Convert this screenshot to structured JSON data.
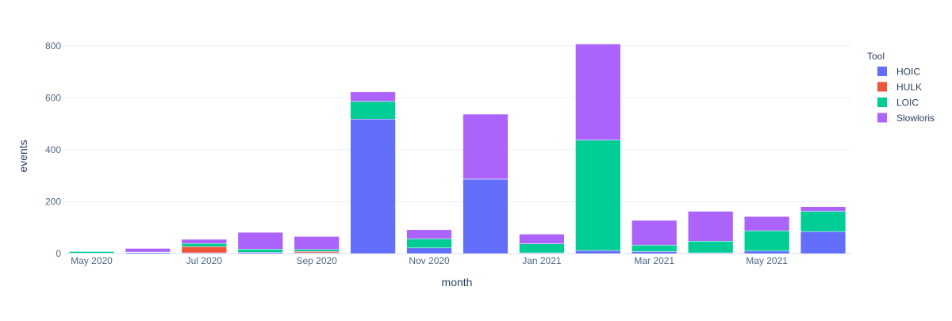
{
  "chart_data": {
    "type": "bar",
    "barmode": "stack",
    "xlabel": "month",
    "ylabel": "events",
    "ylim": [
      0,
      830
    ],
    "yticks": [
      0,
      200,
      400,
      600,
      800
    ],
    "x_tick_labels": [
      "May 2020",
      "Jul 2020",
      "Sep 2020",
      "Nov 2020",
      "Jan 2021",
      "Mar 2021",
      "May 2021"
    ],
    "grid": true,
    "legend_title": "Tool",
    "legend_position": "top-right",
    "categories": [
      "2020-05",
      "2020-06",
      "2020-07",
      "2020-08",
      "2020-09",
      "2020-10",
      "2020-11",
      "2020-12",
      "2021-01",
      "2021-02",
      "2021-03",
      "2021-04",
      "2021-05",
      "2021-06"
    ],
    "series": [
      {
        "name": "HOIC",
        "color": "#636efa",
        "values": [
          2,
          4,
          3,
          5,
          3,
          518,
          22,
          287,
          3,
          12,
          8,
          3,
          10,
          85
        ]
      },
      {
        "name": "HULK",
        "color": "#ef553b",
        "values": [
          0,
          0,
          24,
          0,
          5,
          0,
          0,
          0,
          0,
          0,
          0,
          0,
          0,
          0
        ]
      },
      {
        "name": "LOIC",
        "color": "#00cc96",
        "values": [
          6,
          2,
          12,
          12,
          8,
          68,
          35,
          0,
          35,
          425,
          25,
          45,
          78,
          78
        ]
      },
      {
        "name": "Slowloris",
        "color": "#ab63fa",
        "values": [
          0,
          14,
          16,
          65,
          50,
          37,
          35,
          250,
          37,
          370,
          95,
          115,
          55,
          18
        ]
      }
    ]
  }
}
